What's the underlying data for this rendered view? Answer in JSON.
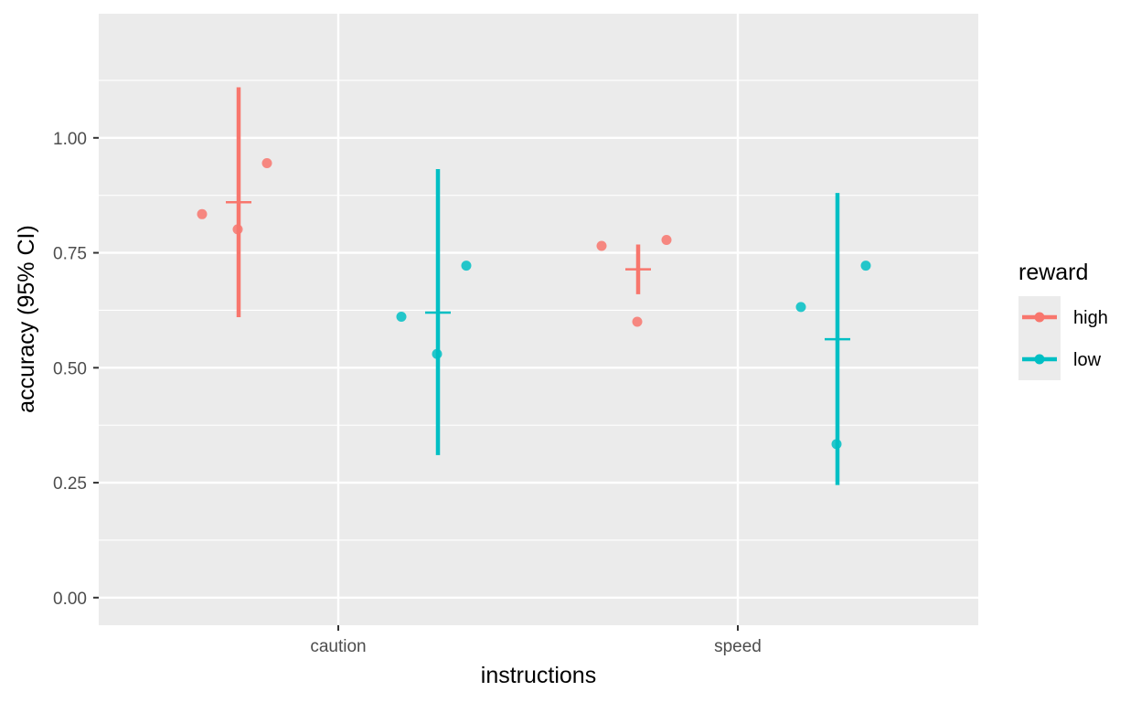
{
  "chart_data": {
    "type": "scatter",
    "title": "",
    "xlabel": "instructions",
    "ylabel": "accuracy (95% CI)",
    "categories": [
      "caution",
      "speed"
    ],
    "ylim": [
      -0.06,
      1.27
    ],
    "yticks": [
      0.0,
      0.25,
      0.5,
      0.75,
      1.0
    ],
    "ytick_labels": [
      "0.00",
      "0.25",
      "0.50",
      "0.75",
      "1.00"
    ],
    "grid": true,
    "legend": {
      "title": "reward",
      "placement": "right"
    },
    "colors": {
      "high": "#F8766D",
      "low": "#00BFC4",
      "panel": "#EBEBEB",
      "grid": "#FFFFFF"
    },
    "series": [
      {
        "name": "high",
        "color": "#F8766D",
        "groups": [
          {
            "category": "caution",
            "points": [
              0.834,
              0.801,
              0.945
            ],
            "mean": 0.86,
            "ci": [
              0.61,
              1.11
            ]
          },
          {
            "category": "speed",
            "points": [
              0.765,
              0.6,
              0.778
            ],
            "mean": 0.714,
            "ci": [
              0.66,
              0.768
            ]
          }
        ]
      },
      {
        "name": "low",
        "color": "#00BFC4",
        "groups": [
          {
            "category": "caution",
            "points": [
              0.611,
              0.53,
              0.722
            ],
            "mean": 0.62,
            "ci": [
              0.31,
              0.932
            ]
          },
          {
            "category": "speed",
            "points": [
              0.632,
              0.334,
              0.722
            ],
            "mean": 0.562,
            "ci": [
              0.245,
              0.88
            ]
          }
        ]
      }
    ]
  }
}
